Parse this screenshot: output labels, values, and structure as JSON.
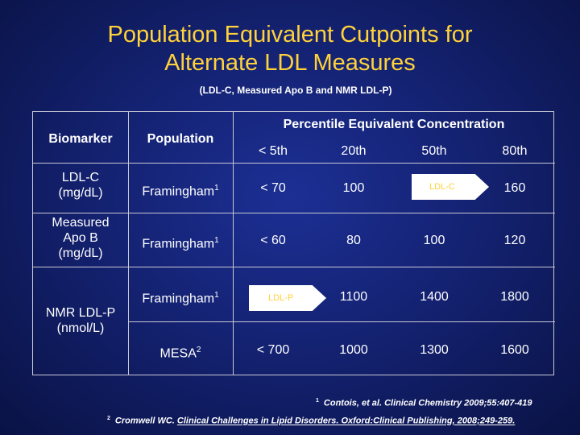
{
  "slide": {
    "title_line1": "Population Equivalent Cutpoints for",
    "title_line2": "Alternate LDL Measures",
    "subtitle": "(LDL-C, Measured Apo B and NMR LDL-P)"
  },
  "table": {
    "headers": {
      "biomarker": "Biomarker",
      "population": "Population",
      "percentile_group": "Percentile Equivalent Concentration",
      "percentiles": [
        "< 5th",
        "20th",
        "50th",
        "80th"
      ]
    },
    "biomarkers": {
      "ldlc_line1": "LDL-C",
      "ldlc_line2": "(mg/dL)",
      "apob_line1": "Measured",
      "apob_line2": "Apo B",
      "apob_line3": "(mg/dL)",
      "nmr_line1": "NMR LDL-P",
      "nmr_line2": "(nmol/L)"
    },
    "rows": [
      {
        "population": "Framingham",
        "sup": "1",
        "values": [
          "< 70",
          "100",
          "",
          "160"
        ]
      },
      {
        "population": "Framingham",
        "sup": "1",
        "values": [
          "< 60",
          "80",
          "100",
          "120"
        ]
      },
      {
        "population": "Framingham",
        "sup": "1",
        "values": [
          "",
          "1100",
          "1400",
          "1800"
        ]
      },
      {
        "population": "MESA",
        "sup": "2",
        "values": [
          "< 700",
          "1000",
          "1300",
          "1600"
        ]
      }
    ],
    "arrows": {
      "ldlc_label": "LDL-C",
      "ldlp_label": "LDL-P"
    }
  },
  "footnotes": {
    "fn1_sup": "1",
    "fn1_text": "Contois, et al. Clinical Chemistry 2009;55:407-419",
    "fn2_sup": "2",
    "fn2_prefix": "Cromwell WC.",
    "fn2_link": "Clinical Challenges in Lipid Disorders. Oxford:Clinical Publishing, 2008;249-259."
  },
  "colors": {
    "title": "#ffd23a",
    "background": "#142272",
    "arrow_fill": "#ffffff",
    "arrow_text": "#ffd23a"
  }
}
